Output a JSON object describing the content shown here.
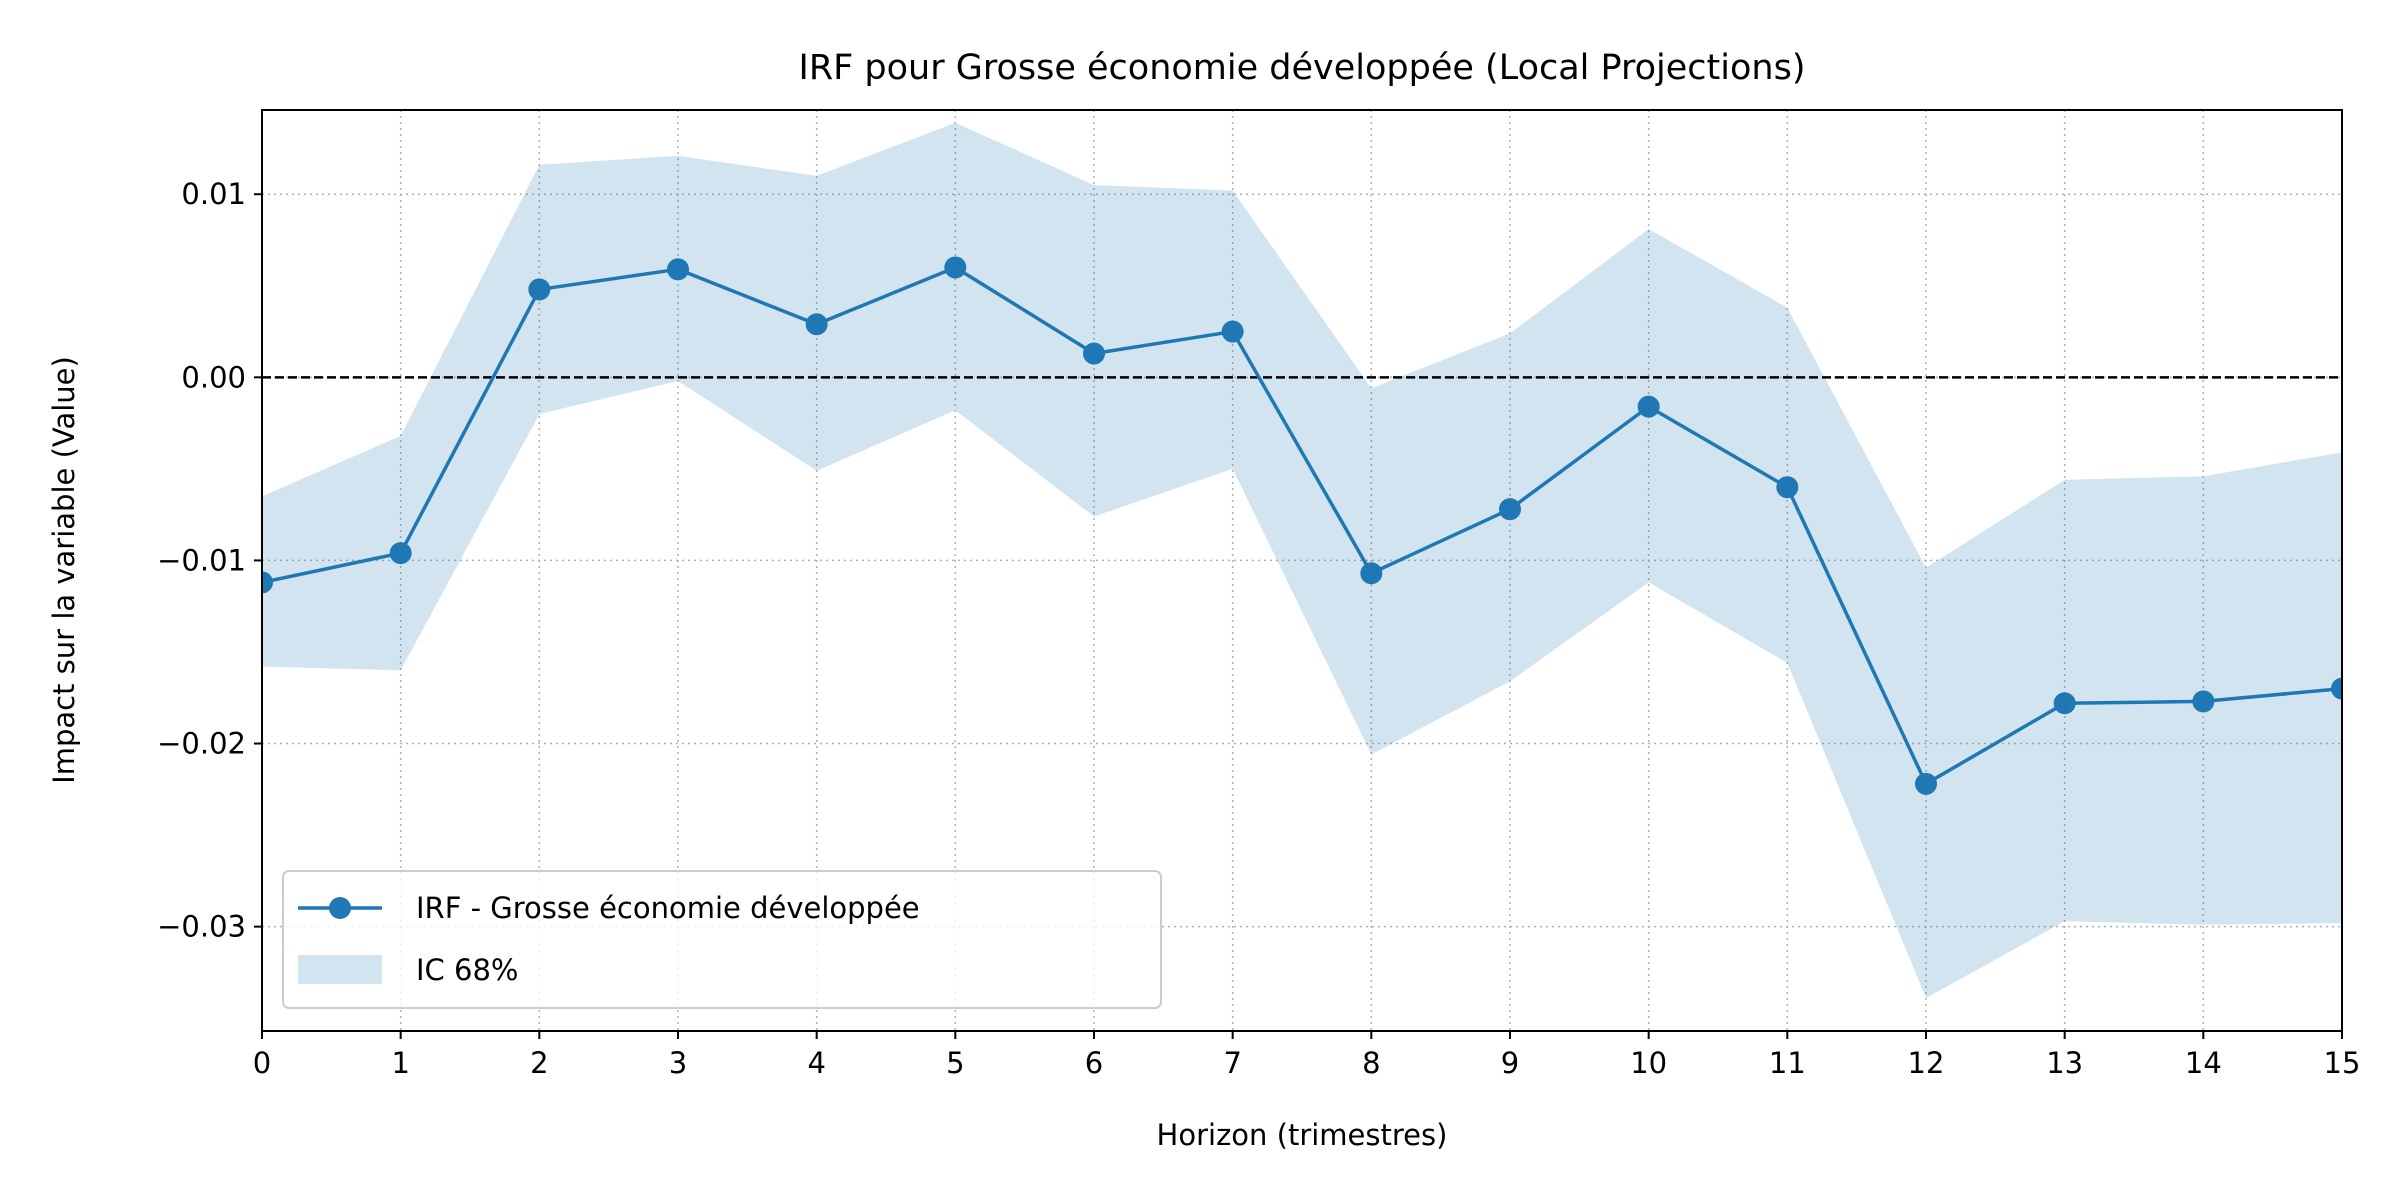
{
  "chart_data": {
    "type": "line",
    "title": "IRF pour Grosse économie développée (Local Projections)",
    "xlabel": "Horizon (trimestres)",
    "ylabel": "Impact sur la variable (Value)",
    "xlim": [
      0,
      15
    ],
    "ylim": [
      -0.0357,
      0.0146
    ],
    "x": [
      0,
      1,
      2,
      3,
      4,
      5,
      6,
      7,
      8,
      9,
      10,
      11,
      12,
      13,
      14,
      15
    ],
    "x_tick_labels": [
      "0",
      "1",
      "2",
      "3",
      "4",
      "5",
      "6",
      "7",
      "8",
      "9",
      "10",
      "11",
      "12",
      "13",
      "14",
      "15"
    ],
    "y_ticks": [
      0.01,
      0.0,
      -0.01,
      -0.02,
      -0.03
    ],
    "y_tick_labels": [
      "0.01",
      "0.00",
      "−0.01",
      "−0.02",
      "−0.03"
    ],
    "series": [
      {
        "name": "IRF - Grosse économie développée",
        "values": [
          -0.0112,
          -0.0096,
          0.0048,
          0.0059,
          0.0029,
          0.006,
          0.0013,
          0.0025,
          -0.0107,
          -0.0072,
          -0.0016,
          -0.006,
          -0.0222,
          -0.0178,
          -0.0177,
          -0.017
        ],
        "color": "#1f77b4",
        "marker": "circle"
      }
    ],
    "band": {
      "name": "IC 68%",
      "lower": [
        -0.0158,
        -0.016,
        -0.002,
        -0.0002,
        -0.0051,
        -0.0018,
        -0.0076,
        -0.005,
        -0.0206,
        -0.0166,
        -0.0112,
        -0.0156,
        -0.0339,
        -0.0297,
        -0.0299,
        -0.0298
      ],
      "upper": [
        -0.0065,
        -0.0032,
        0.0116,
        0.0121,
        0.011,
        0.0139,
        0.0105,
        0.0102,
        -0.0006,
        0.0024,
        0.0081,
        0.0038,
        -0.0104,
        -0.0056,
        -0.0054,
        -0.0041
      ],
      "color": "#1f77b4",
      "opacity": 0.2
    },
    "reference_line": {
      "y": 0,
      "style": "dashed",
      "color": "#000000"
    },
    "grid": true,
    "grid_style": "dotted",
    "legend": {
      "placement": "lower-left",
      "entries": [
        "IRF - Grosse économie développée",
        "IC 68%"
      ]
    }
  }
}
